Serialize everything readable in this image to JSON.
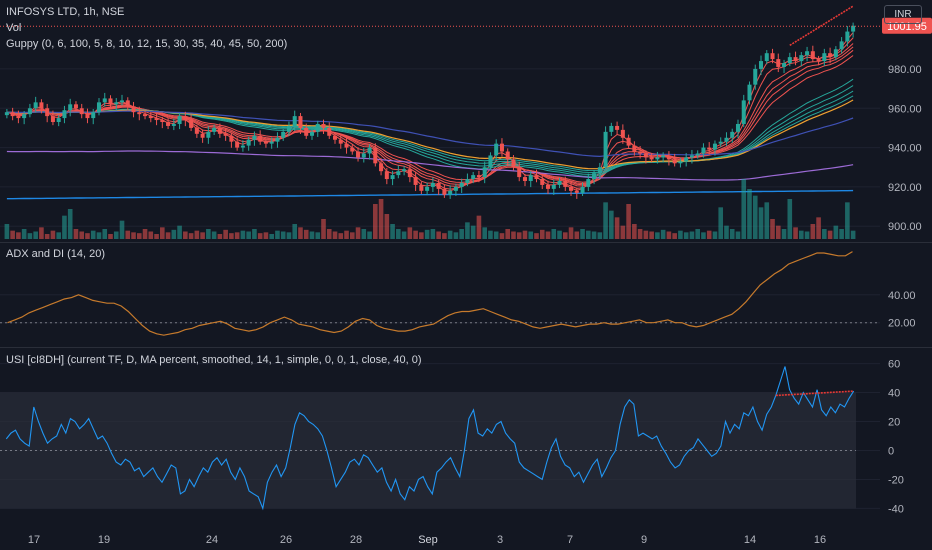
{
  "header": {
    "title": "INFOSYS LTD, 1h, NSE",
    "currency": "INR",
    "vol_label": "Vol",
    "guppy_label": "Guppy (0, 6, 100, 5, 8, 10, 12, 15, 30, 35, 40, 45, 50, 200)",
    "adx_label": "ADX and DI (14, 20)",
    "usi_label": "USI [cI8DH] (current TF, D, MA percent, smoothed, 14, 1, simple, 0, 0, 1, close, 40, 0)"
  },
  "colors": {
    "background": "#131722",
    "grid": "#1e2230",
    "up": "#26a69a",
    "down": "#ef5350",
    "adx": "#c67a2c",
    "usi": "#2196f3",
    "ma200": "#1e88e5",
    "ma_long": "#9c6bd6",
    "guppy_fast": "#ef5350",
    "guppy_slow": "#26a69a",
    "guppy_orange": "#f0a030",
    "price_tag": "#ef5350",
    "divergence": "#e53935"
  },
  "chart_data": [
    {
      "type": "candlestick",
      "title": "INFOSYS LTD, 1h, NSE",
      "ylim": [
        893,
        1012
      ],
      "yticks": [
        900.0,
        920.0,
        940.0,
        960.0,
        980.0
      ],
      "ytick_labels": [
        "900.00",
        "920.00",
        "940.00",
        "960.00",
        "980.00"
      ],
      "last_price": 1001.95,
      "last_price_label": "1001.95",
      "x_tick_labels": [
        "17",
        "19",
        "24",
        "26",
        "28",
        "Sep",
        "3",
        "7",
        "9",
        "14",
        "16"
      ],
      "closes": [
        958,
        956,
        955,
        957,
        960,
        963,
        960,
        956,
        953,
        955,
        959,
        962,
        960,
        957,
        955,
        958,
        963,
        965,
        962,
        963,
        964,
        961,
        958,
        957,
        956,
        955,
        954,
        953,
        951,
        952,
        956,
        954,
        950,
        947,
        945,
        948,
        950,
        947,
        946,
        943,
        940,
        941,
        944,
        946,
        943,
        942,
        943,
        945,
        948,
        951,
        956,
        950,
        946,
        948,
        952,
        950,
        946,
        944,
        942,
        940,
        938,
        935,
        937,
        940,
        932,
        928,
        924,
        926,
        928,
        929,
        925,
        921,
        918,
        920,
        922,
        919,
        916,
        918,
        920,
        922,
        924,
        926,
        925,
        930,
        936,
        942,
        938,
        934,
        930,
        925,
        923,
        926,
        924,
        921,
        919,
        921,
        923,
        920,
        918,
        917,
        920,
        924,
        927,
        930,
        948,
        951,
        949,
        945,
        941,
        938,
        937,
        935,
        934,
        935,
        936,
        934,
        932,
        933,
        935,
        936,
        937,
        940,
        939,
        942,
        943,
        945,
        948,
        952,
        964,
        972,
        980,
        984,
        988,
        985,
        981,
        983,
        986,
        984,
        987,
        989,
        985,
        984,
        988,
        986,
        990,
        994,
        999,
        1001.95
      ],
      "volume": [
        18,
        10,
        8,
        12,
        7,
        9,
        14,
        6,
        10,
        8,
        28,
        36,
        12,
        9,
        7,
        10,
        8,
        12,
        6,
        9,
        22,
        10,
        8,
        7,
        12,
        9,
        6,
        14,
        8,
        11,
        16,
        9,
        7,
        10,
        8,
        12,
        9,
        6,
        11,
        7,
        8,
        10,
        9,
        12,
        7,
        8,
        6,
        10,
        9,
        8,
        18,
        14,
        11,
        9,
        8,
        24,
        12,
        9,
        7,
        10,
        8,
        14,
        12,
        9,
        42,
        48,
        30,
        18,
        12,
        9,
        14,
        10,
        8,
        11,
        12,
        9,
        7,
        10,
        8,
        12,
        20,
        16,
        28,
        14,
        10,
        9,
        7,
        12,
        9,
        8,
        10,
        9,
        7,
        11,
        9,
        12,
        10,
        8,
        14,
        9,
        12,
        10,
        9,
        8,
        44,
        34,
        26,
        16,
        42,
        18,
        12,
        10,
        9,
        8,
        11,
        9,
        7,
        10,
        8,
        9,
        12,
        8,
        10,
        9,
        38,
        16,
        12,
        9,
        72,
        60,
        52,
        38,
        44,
        24,
        16,
        12,
        48,
        14,
        10,
        9,
        18,
        26,
        12,
        10,
        16,
        12,
        44,
        10
      ]
    },
    {
      "type": "line",
      "title": "ADX and DI (14, 20)",
      "ylim": [
        4,
        75
      ],
      "yticks": [
        20.0,
        40.0
      ],
      "ytick_labels": [
        "20.00",
        "40.00"
      ],
      "threshold": 20,
      "series": [
        {
          "values": [
            20,
            22,
            24,
            27,
            29,
            31,
            33,
            35,
            37,
            38,
            40,
            38,
            36,
            35,
            34,
            34,
            32,
            28,
            23,
            18,
            14,
            12,
            11,
            12,
            13,
            15,
            16,
            18,
            19,
            20,
            21,
            19,
            16,
            15,
            14,
            15,
            17,
            20,
            22,
            24,
            22,
            19,
            18,
            17,
            15,
            14,
            13,
            14,
            17,
            21,
            23,
            22,
            18,
            16,
            15,
            14,
            14,
            15,
            17,
            18,
            19,
            22,
            25,
            27,
            28,
            28,
            29,
            30,
            28,
            26,
            24,
            22,
            21,
            19,
            17,
            16,
            17,
            18,
            19,
            18,
            17,
            18,
            19,
            19,
            20,
            19,
            19,
            20,
            21,
            22,
            20,
            20,
            21,
            22,
            20,
            20,
            18,
            17,
            18,
            20,
            22,
            24,
            26,
            30,
            35,
            41,
            47,
            51,
            55,
            58,
            62,
            64,
            66,
            68,
            70,
            70,
            69,
            68,
            68,
            71
          ]
        }
      ]
    },
    {
      "type": "line",
      "title": "USI [cI8DH]",
      "ylim": [
        -48,
        68
      ],
      "yticks": [
        60,
        40,
        20,
        0,
        -20,
        -40
      ],
      "ytick_labels": [
        "60",
        "40",
        "20",
        "0",
        "-20",
        "-40"
      ],
      "band": [
        -40,
        40
      ],
      "series": [
        {
          "values": [
            8,
            12,
            14,
            8,
            5,
            3,
            30,
            20,
            12,
            5,
            8,
            10,
            18,
            12,
            22,
            20,
            15,
            18,
            22,
            15,
            8,
            10,
            5,
            -2,
            -8,
            -10,
            -6,
            -8,
            -14,
            -12,
            -18,
            -15,
            -12,
            -18,
            -22,
            -16,
            -10,
            -12,
            -30,
            -28,
            -20,
            -25,
            -18,
            -12,
            -15,
            -8,
            -5,
            -10,
            -6,
            -15,
            -20,
            -12,
            -18,
            -28,
            -30,
            -32,
            -40,
            -22,
            -15,
            -10,
            -18,
            -12,
            2,
            18,
            26,
            24,
            20,
            18,
            15,
            10,
            0,
            -12,
            -25,
            -20,
            -15,
            -8,
            -6,
            -10,
            -3,
            -5,
            -10,
            -15,
            -12,
            -22,
            -28,
            -20,
            -30,
            -34,
            -25,
            -28,
            -20,
            -18,
            -25,
            -30,
            -15,
            -12,
            -8,
            -5,
            -12,
            -18,
            0,
            22,
            28,
            12,
            10,
            15,
            12,
            18,
            20,
            12,
            8,
            5,
            -8,
            -12,
            -14,
            -16,
            -18,
            -20,
            -8,
            2,
            8,
            -4,
            -10,
            -12,
            -18,
            -15,
            -22,
            -16,
            -10,
            -6,
            -18,
            -12,
            -5,
            0,
            18,
            30,
            35,
            32,
            10,
            12,
            10,
            8,
            10,
            3,
            -2,
            -8,
            -12,
            -10,
            -4,
            0,
            2,
            8,
            4,
            0,
            -4,
            -2,
            3,
            20,
            12,
            18,
            15,
            26,
            24,
            30,
            20,
            14,
            25,
            30,
            38,
            48,
            58,
            42,
            36,
            32,
            40,
            35,
            30,
            42,
            28,
            24,
            30,
            26,
            32,
            30,
            36,
            41
          ]
        }
      ]
    }
  ]
}
